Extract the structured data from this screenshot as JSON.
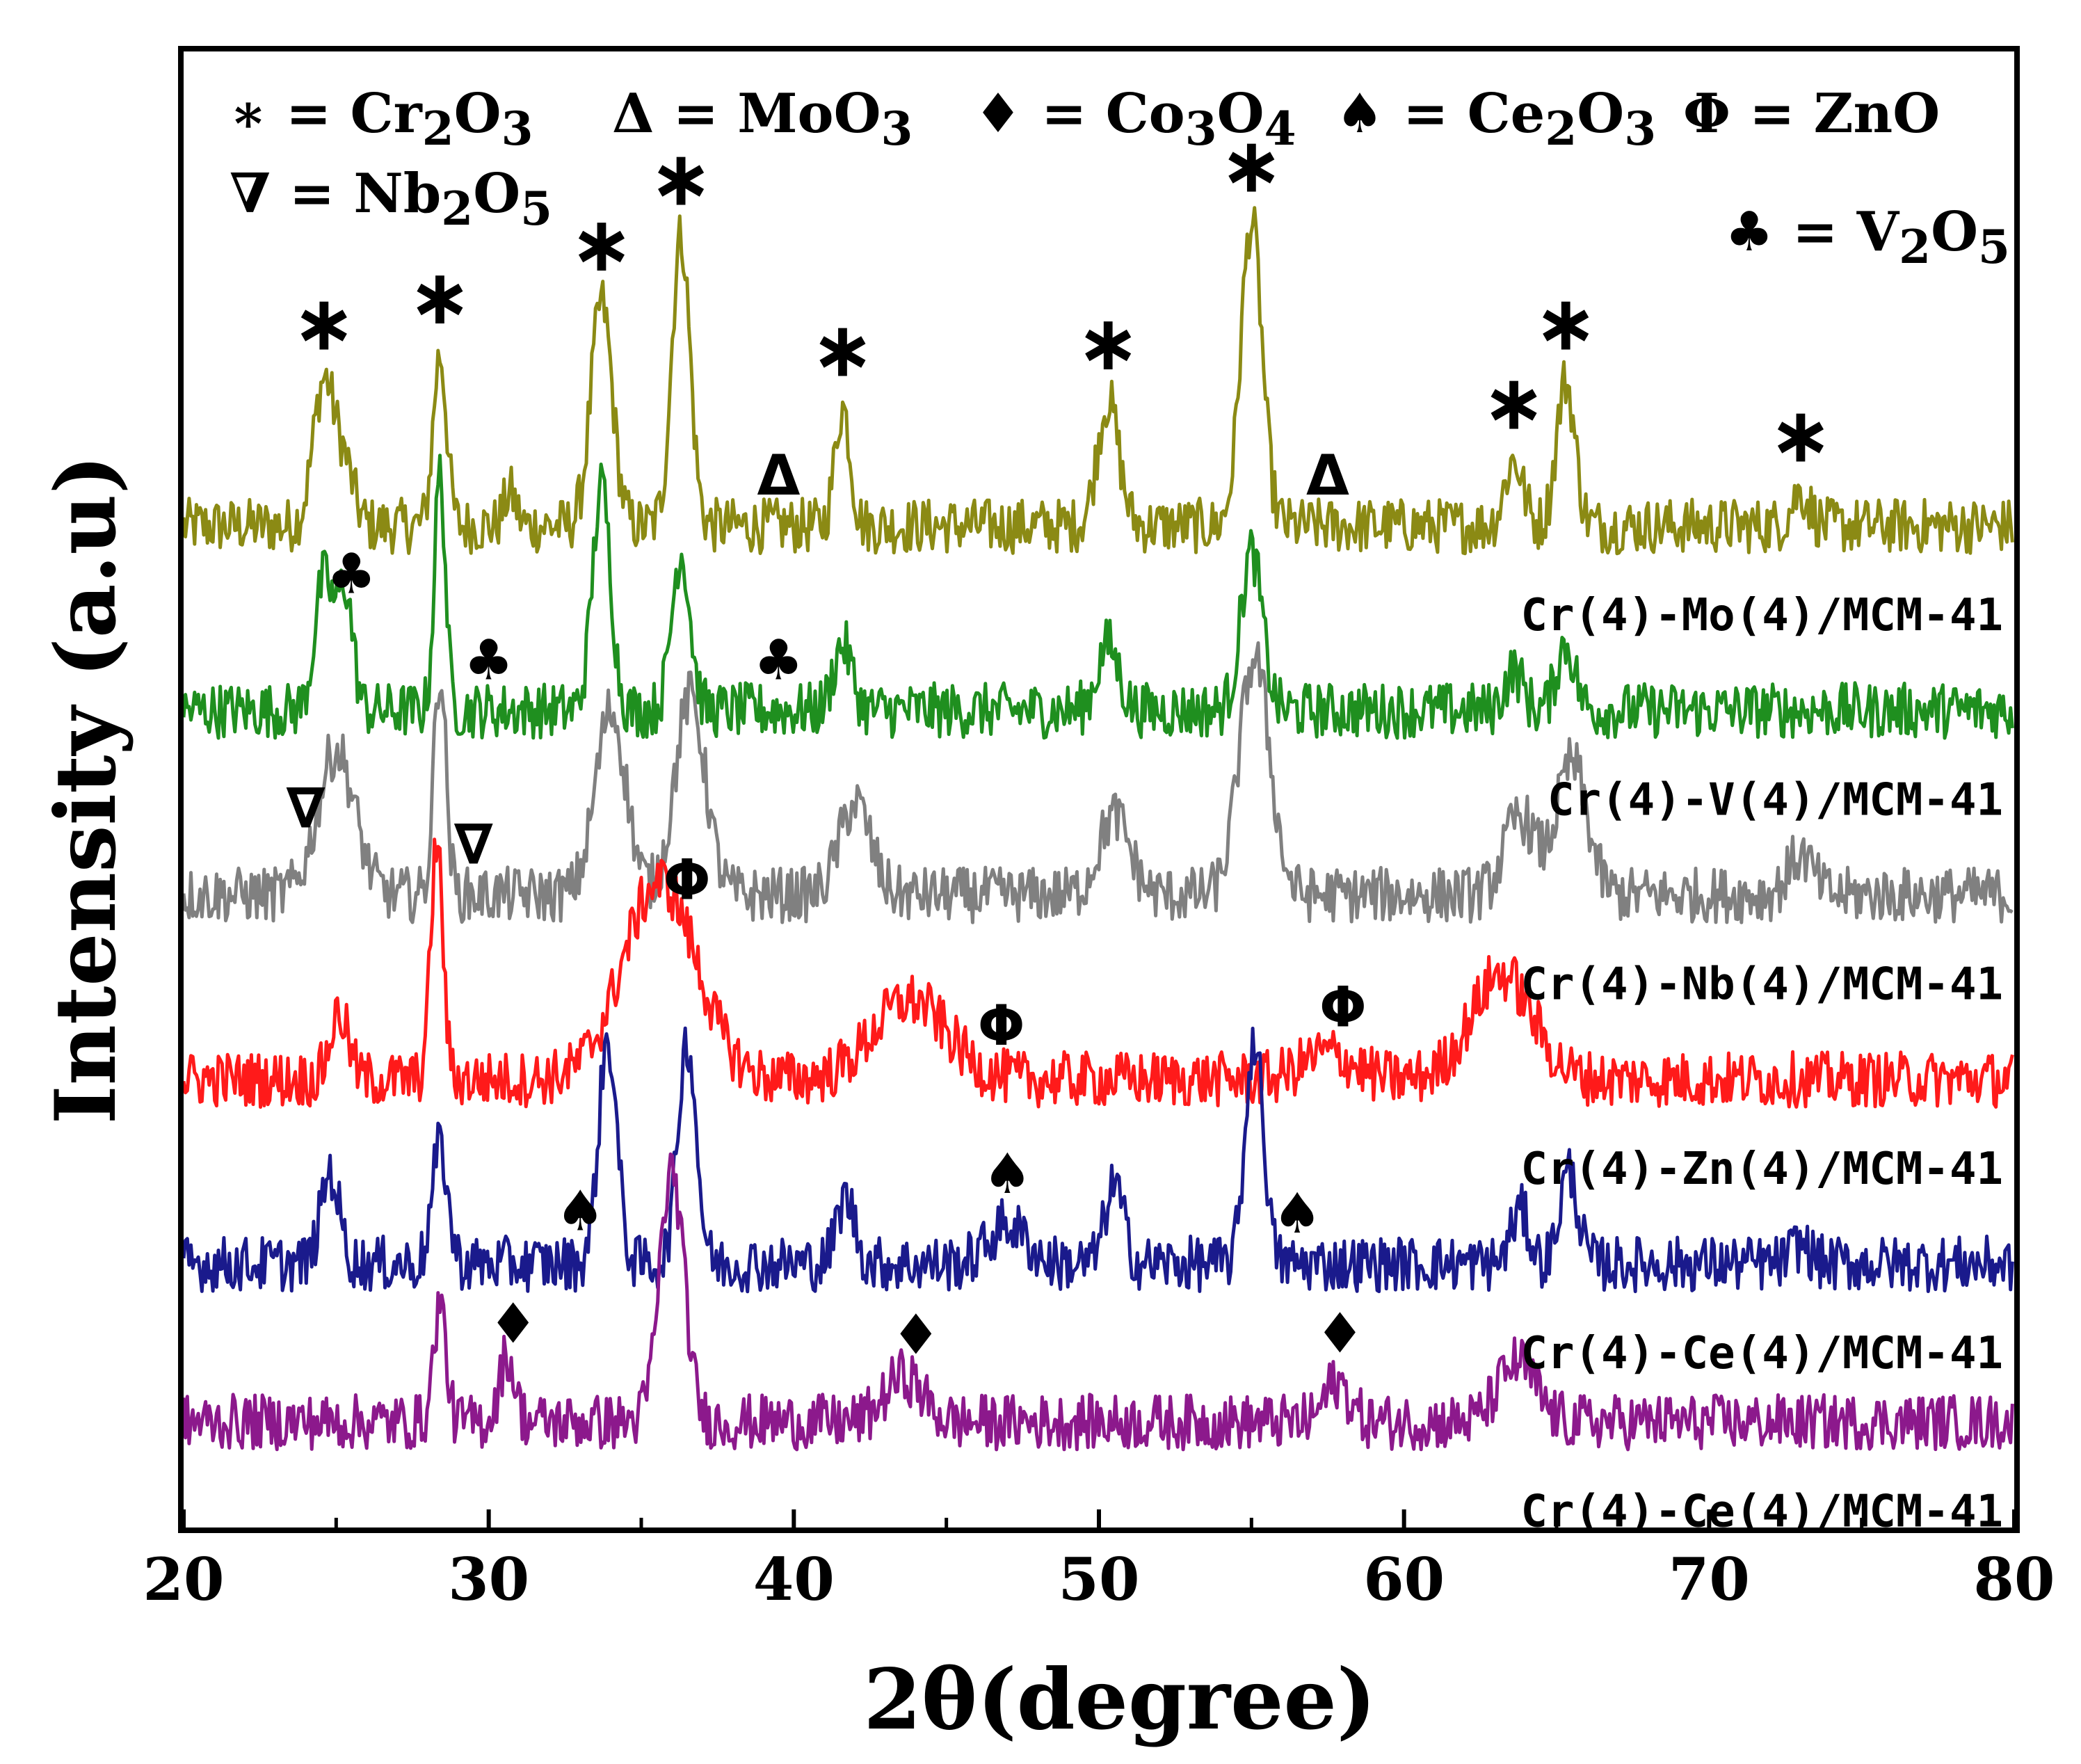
{
  "chart_data": {
    "type": "line",
    "title": "",
    "xlabel": "2θ(degree)",
    "ylabel": "Intensity (a.u)",
    "xlim": [
      20,
      80
    ],
    "xticks": [
      "20",
      "30",
      "40",
      "50",
      "60",
      "70",
      "80"
    ],
    "yticks": [],
    "legend": [
      {
        "symbol": "∗",
        "label": "= Cr",
        "sub1": "2",
        "mid": "O",
        "sub2": "3"
      },
      {
        "symbol": "Δ",
        "label": "= MoO",
        "sub1": "3",
        "mid": "",
        "sub2": ""
      },
      {
        "symbol": "♦",
        "label": "= Co",
        "sub1": "3",
        "mid": "O",
        "sub2": "4"
      },
      {
        "symbol": "♠",
        "label": "= Ce",
        "sub1": "2",
        "mid": "O",
        "sub2": "3"
      },
      {
        "symbol": "Φ",
        "label": "= ZnO",
        "sub1": "",
        "mid": "",
        "sub2": ""
      },
      {
        "symbol": "∇",
        "label": "= Nb",
        "sub1": "2",
        "mid": "O",
        "sub2": "5"
      },
      {
        "symbol": "♣",
        "label": "= V",
        "sub1": "2",
        "mid": "O",
        "sub2": "5"
      }
    ],
    "series": [
      {
        "name": "Cr(4)-Mo(4)/MCM-41",
        "color": "#8b8a14",
        "baseline": 7.6,
        "peaks": [
          [
            24.6,
            1.1,
            0.35
          ],
          [
            28.4,
            1.3,
            0.22
          ],
          [
            33.7,
            1.7,
            0.35
          ],
          [
            36.3,
            2.2,
            0.3
          ],
          [
            41.6,
            0.9,
            0.25
          ],
          [
            50.3,
            0.95,
            0.35
          ],
          [
            55.0,
            2.3,
            0.35
          ],
          [
            63.6,
            0.5,
            0.3
          ],
          [
            65.3,
            1.1,
            0.3
          ],
          [
            73.0,
            0.25,
            0.3
          ],
          [
            30.7,
            0.25,
            0.2
          ],
          [
            25.3,
            0.4,
            0.3
          ]
        ],
        "markers": [
          [
            24.6,
            "∗"
          ],
          [
            28.4,
            "∗"
          ],
          [
            33.7,
            "∗"
          ],
          [
            36.3,
            "∗"
          ],
          [
            41.6,
            "∗"
          ],
          [
            50.3,
            "∗"
          ],
          [
            55.0,
            "∗"
          ],
          [
            63.6,
            "∗"
          ],
          [
            65.3,
            "∗"
          ],
          [
            73.0,
            "∗"
          ],
          [
            39.5,
            "Δ"
          ],
          [
            57.5,
            "Δ"
          ]
        ]
      },
      {
        "name": "Cr(4)-V(4)/MCM-41",
        "color": "#1f8f1f",
        "baseline": 6.2,
        "peaks": [
          [
            24.6,
            1.0,
            0.3
          ],
          [
            25.3,
            0.9,
            0.25
          ],
          [
            28.4,
            1.8,
            0.18
          ],
          [
            33.7,
            1.7,
            0.3
          ],
          [
            36.3,
            1.2,
            0.3
          ],
          [
            41.6,
            0.5,
            0.3
          ],
          [
            50.3,
            0.5,
            0.35
          ],
          [
            55.0,
            1.2,
            0.35
          ],
          [
            63.6,
            0.3,
            0.3
          ],
          [
            65.3,
            0.5,
            0.3
          ]
        ],
        "markers": [
          [
            25.5,
            "♣"
          ],
          [
            30.0,
            "♣"
          ],
          [
            39.5,
            "♣"
          ]
        ]
      },
      {
        "name": "Cr(4)-Nb(4)/MCM-41",
        "color": "#808080",
        "baseline": 4.8,
        "peaks": [
          [
            25.0,
            1.1,
            0.6
          ],
          [
            28.4,
            1.7,
            0.2
          ],
          [
            34.0,
            1.4,
            0.5
          ],
          [
            36.6,
            1.5,
            0.5
          ],
          [
            42.0,
            0.7,
            0.5
          ],
          [
            50.5,
            0.6,
            0.5
          ],
          [
            55.1,
            1.8,
            0.5
          ],
          [
            63.8,
            0.6,
            0.5
          ],
          [
            65.5,
            1.0,
            0.5
          ],
          [
            73.0,
            0.3,
            0.4
          ]
        ],
        "markers": [
          [
            24.0,
            "∇"
          ],
          [
            29.5,
            "∇"
          ]
        ]
      },
      {
        "name": "Cr(4)-Zn(4)/MCM-41",
        "color": "#ff1a1a",
        "baseline": 3.4,
        "peaks": [
          [
            25.1,
            0.5,
            0.3
          ],
          [
            28.3,
            1.8,
            0.2
          ],
          [
            35.6,
            1.5,
            1.2
          ],
          [
            43.8,
            0.6,
            1.2
          ],
          [
            57.5,
            0.2,
            0.8
          ],
          [
            63.2,
            0.8,
            1.0
          ]
        ],
        "markers": [
          [
            36.5,
            "Φ"
          ],
          [
            46.8,
            "Φ"
          ],
          [
            58.0,
            "Φ"
          ]
        ]
      },
      {
        "name": "Cr(4)-Ce(4)/MCM-41",
        "color": "#1a1a8c",
        "baseline": 2.0,
        "peaks": [
          [
            24.8,
            0.7,
            0.3
          ],
          [
            28.4,
            0.9,
            0.25
          ],
          [
            33.9,
            1.7,
            0.3
          ],
          [
            36.5,
            1.7,
            0.3
          ],
          [
            41.7,
            0.5,
            0.3
          ],
          [
            47.0,
            0.3,
            0.6
          ],
          [
            50.5,
            0.6,
            0.3
          ],
          [
            55.1,
            1.7,
            0.3
          ],
          [
            63.8,
            0.4,
            0.3
          ],
          [
            65.4,
            0.7,
            0.3
          ],
          [
            73.0,
            0.15,
            0.3
          ]
        ],
        "markers": [
          [
            33.0,
            "♠"
          ],
          [
            47.0,
            "♠"
          ],
          [
            56.5,
            "♠"
          ]
        ]
      },
      {
        "name": "Cr(4)-Ce(4)/MCM-41",
        "color": "#8c198c",
        "baseline": 0.8,
        "peaks": [
          [
            28.4,
            0.9,
            0.2
          ],
          [
            30.6,
            0.5,
            0.25
          ],
          [
            36.0,
            1.9,
            0.4
          ],
          [
            43.6,
            0.35,
            0.6
          ],
          [
            57.8,
            0.3,
            0.4
          ],
          [
            63.7,
            0.45,
            0.6
          ]
        ],
        "markers": [
          [
            30.8,
            "♦"
          ],
          [
            44.0,
            "♦"
          ],
          [
            57.9,
            "♦"
          ]
        ]
      }
    ]
  }
}
